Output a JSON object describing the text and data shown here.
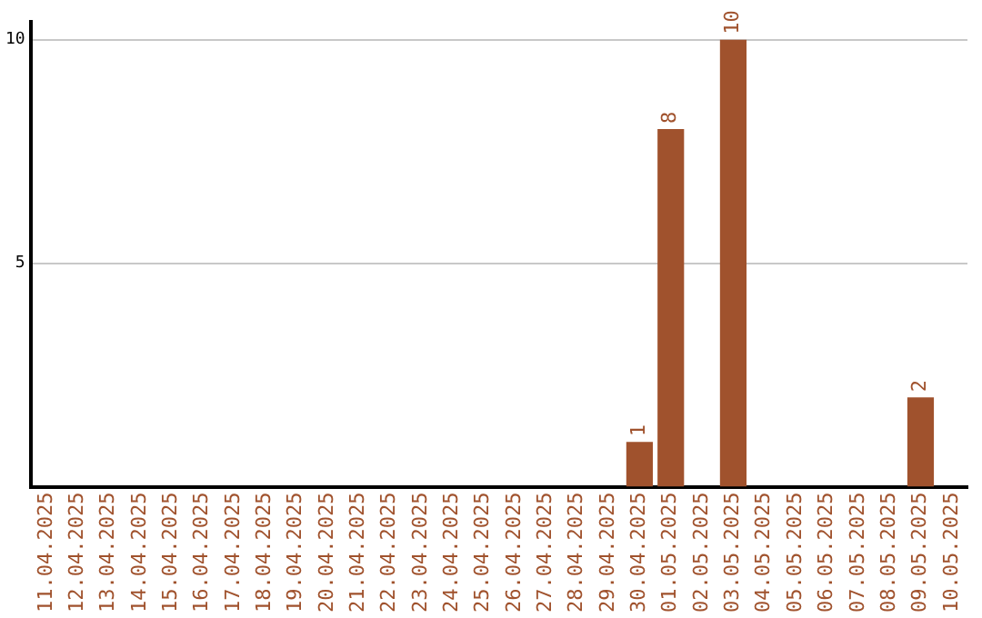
{
  "chart_data": {
    "type": "bar",
    "categories": [
      "11.04.2025",
      "12.04.2025",
      "13.04.2025",
      "14.04.2025",
      "15.04.2025",
      "16.04.2025",
      "17.04.2025",
      "18.04.2025",
      "19.04.2025",
      "20.04.2025",
      "21.04.2025",
      "22.04.2025",
      "23.04.2025",
      "24.04.2025",
      "25.04.2025",
      "26.04.2025",
      "27.04.2025",
      "28.04.2025",
      "29.04.2025",
      "30.04.2025",
      "01.05.2025",
      "02.05.2025",
      "03.05.2025",
      "04.05.2025",
      "05.05.2025",
      "06.05.2025",
      "07.05.2025",
      "08.05.2025",
      "09.05.2025",
      "10.05.2025"
    ],
    "values": [
      0,
      0,
      0,
      0,
      0,
      0,
      0,
      0,
      0,
      0,
      0,
      0,
      0,
      0,
      0,
      0,
      0,
      0,
      0,
      1,
      8,
      0,
      10,
      0,
      0,
      0,
      0,
      0,
      2,
      0
    ],
    "value_labels": [
      null,
      null,
      null,
      null,
      null,
      null,
      null,
      null,
      null,
      null,
      null,
      null,
      null,
      null,
      null,
      null,
      null,
      null,
      null,
      "1",
      "8",
      null,
      "10",
      null,
      null,
      null,
      null,
      null,
      "2",
      null
    ],
    "color": "#a0522d",
    "ylim": [
      0,
      10.4
    ],
    "yticks": [
      5,
      10
    ],
    "grid": "y",
    "legend": false
  }
}
